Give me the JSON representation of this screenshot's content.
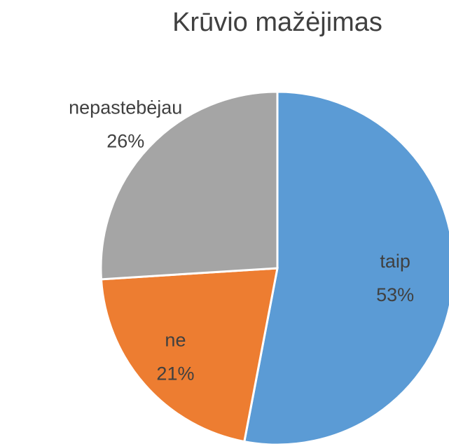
{
  "chart_data": {
    "type": "pie",
    "title": "Krūvio mažėjimas",
    "categories": [
      "taip",
      "ne",
      "nepastebėjau"
    ],
    "values": [
      53,
      21,
      26
    ],
    "value_labels": [
      "53%",
      "21%",
      "26%"
    ],
    "colors": [
      "#5b9bd5",
      "#ed7d31",
      "#a5a5a5"
    ]
  }
}
